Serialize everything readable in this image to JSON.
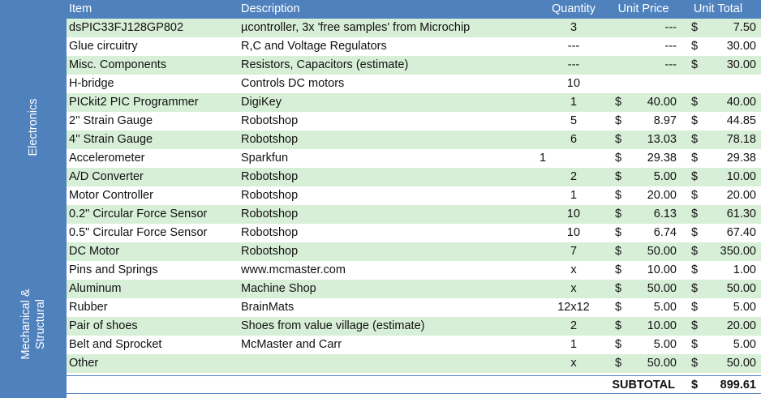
{
  "categories": {
    "electronics": "Electronics",
    "mechanical": "Mechanical & Structural"
  },
  "header": {
    "item": "Item",
    "description": "Description",
    "quantity": "Quantity",
    "unit_price": "Unit Price",
    "unit_total": "Unit Total"
  },
  "rows": [
    {
      "item": "dsPIC33FJ128GP802",
      "description": "µcontroller, 3x 'free samples' from Microchip",
      "quantity": "3",
      "d1": "",
      "unit_price": "---",
      "d2": "$",
      "unit_total": "7.50"
    },
    {
      "item": "Glue circuitry",
      "description": "R,C and Voltage Regulators",
      "quantity": "---",
      "d1": "",
      "unit_price": "---",
      "d2": "$",
      "unit_total": "30.00"
    },
    {
      "item": "Misc. Components",
      "description": "Resistors, Capacitors (estimate)",
      "quantity": "---",
      "d1": "",
      "unit_price": "---",
      "d2": "$",
      "unit_total": "30.00"
    },
    {
      "item": "H-bridge",
      "description": "Controls DC motors",
      "quantity": "10",
      "d1": "",
      "unit_price": "",
      "d2": "",
      "unit_total": ""
    },
    {
      "item": "PICkit2 PIC Programmer",
      "description": "DigiKey",
      "quantity": "1",
      "d1": "$",
      "unit_price": "40.00",
      "d2": "$",
      "unit_total": "40.00"
    },
    {
      "item": "2'' Strain Gauge",
      "description": "Robotshop",
      "quantity": "5",
      "d1": "$",
      "unit_price": "8.97",
      "d2": "$",
      "unit_total": "44.85"
    },
    {
      "item": "4'' Strain Gauge",
      "description": "Robotshop",
      "quantity": "6",
      "d1": "$",
      "unit_price": "13.03",
      "d2": "$",
      "unit_total": "78.18"
    },
    {
      "item": "Accelerometer",
      "description": "Sparkfun",
      "quantity": "1",
      "d1": "$",
      "unit_price": "29.38",
      "d2": "$",
      "unit_total": "29.38"
    },
    {
      "item": "A/D Converter",
      "description": "Robotshop",
      "quantity": "2",
      "d1": "$",
      "unit_price": "5.00",
      "d2": "$",
      "unit_total": "10.00"
    },
    {
      "item": "Motor Controller",
      "description": "Robotshop",
      "quantity": "1",
      "d1": "$",
      "unit_price": "20.00",
      "d2": "$",
      "unit_total": "20.00"
    },
    {
      "item": "0.2\" Circular Force Sensor",
      "description": "Robotshop",
      "quantity": "10",
      "d1": "$",
      "unit_price": "6.13",
      "d2": "$",
      "unit_total": "61.30"
    },
    {
      "item": "0.5\" Circular Force Sensor",
      "description": "Robotshop",
      "quantity": "10",
      "d1": "$",
      "unit_price": "6.74",
      "d2": "$",
      "unit_total": "67.40"
    },
    {
      "item": "DC Motor",
      "description": "Robotshop",
      "quantity": "7",
      "d1": "$",
      "unit_price": "50.00",
      "d2": "$",
      "unit_total": "350.00"
    },
    {
      "item": "Pins and Springs",
      "description": "www.mcmaster.com",
      "quantity": "x",
      "d1": "$",
      "unit_price": "10.00",
      "d2": "$",
      "unit_total": "1.00"
    },
    {
      "item": "Aluminum",
      "description": "Machine Shop",
      "quantity": "x",
      "d1": "$",
      "unit_price": "50.00",
      "d2": "$",
      "unit_total": "50.00"
    },
    {
      "item": "Rubber",
      "description": "BrainMats",
      "quantity": "12x12",
      "d1": "$",
      "unit_price": "5.00",
      "d2": "$",
      "unit_total": "5.00"
    },
    {
      "item": "Pair of shoes",
      "description": "Shoes from value village (estimate)",
      "quantity": "2",
      "d1": "$",
      "unit_price": "10.00",
      "d2": "$",
      "unit_total": "20.00"
    },
    {
      "item": "Belt and Sprocket",
      "description": "McMaster and Carr",
      "quantity": "1",
      "d1": "$",
      "unit_price": "5.00",
      "d2": "$",
      "unit_total": "5.00"
    },
    {
      "item": "Other",
      "description": "",
      "quantity": "x",
      "d1": "$",
      "unit_price": "50.00",
      "d2": "$",
      "unit_total": "50.00"
    }
  ],
  "subtotal": {
    "label": "SUBTOTAL",
    "currency": "$",
    "value": "899.61"
  },
  "colors": {
    "header_blue": "#4f81bd",
    "band_green": "#d8efd7",
    "white": "#ffffff"
  }
}
